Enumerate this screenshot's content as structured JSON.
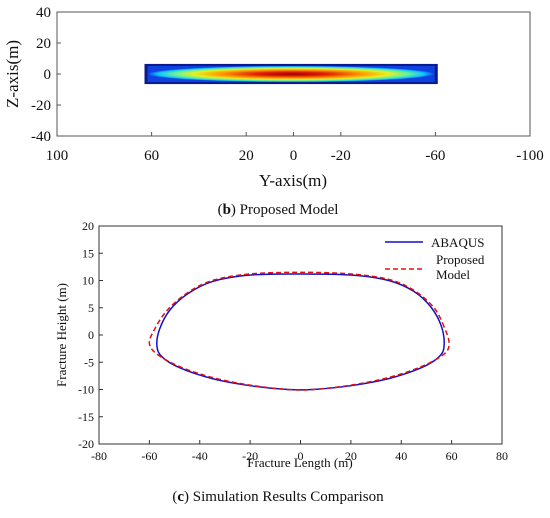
{
  "chart_data": [
    {
      "type": "heatmap",
      "caption_letter": "b",
      "caption_text": "Proposed Model",
      "xlabel": "Y-axis(m)",
      "ylabel": "Z-axis(m)",
      "xlim": [
        100,
        -100
      ],
      "ylim": [
        -40,
        40
      ],
      "xticks": [
        "100",
        "60",
        "20",
        "0",
        "-20",
        "-60",
        "-100"
      ],
      "xtick_values": [
        100,
        60,
        20,
        0,
        -20,
        -60,
        -100
      ],
      "yticks": [
        "40",
        "20",
        "0",
        "-20",
        "-40"
      ],
      "ytick_values": [
        40,
        20,
        0,
        -20,
        -40
      ],
      "fracture_extent": {
        "y_min": -61,
        "y_max": 63,
        "z_min": -6.5,
        "z_max": 6.5
      },
      "colors": [
        "#0a1a8a",
        "#00c8ff",
        "#7fff7f",
        "#ffe000",
        "#ff4000",
        "#b00000"
      ]
    },
    {
      "type": "line",
      "caption_letter": "c",
      "caption_text": "Simulation Results Comparison",
      "xlabel": "Fracture Length (m)",
      "ylabel": "Fracture Height (m)",
      "xlim": [
        -80,
        80
      ],
      "ylim": [
        -20,
        20
      ],
      "xticks": [
        "-80",
        "-60",
        "-40",
        "-20",
        "0",
        "20",
        "40",
        "60",
        "80"
      ],
      "xtick_values": [
        -80,
        -60,
        -40,
        -20,
        0,
        20,
        40,
        60,
        80
      ],
      "yticks": [
        "20",
        "15",
        "10",
        "5",
        "0",
        "-5",
        "-10",
        "-15",
        "-20"
      ],
      "ytick_values": [
        20,
        15,
        10,
        5,
        0,
        -5,
        -10,
        -15,
        -20
      ],
      "legend_position": "top-right",
      "series": [
        {
          "name": "ABAQUS",
          "color": "#1010cc",
          "dash": "solid",
          "x": [
            56,
            52,
            45,
            35,
            20,
            0,
            -20,
            -35,
            -45,
            -52,
            -56,
            -57,
            -55,
            -48,
            -35,
            -20,
            -5,
            5,
            20,
            35,
            48,
            55,
            57,
            56
          ],
          "y": [
            1.5,
            5,
            8,
            10,
            11,
            11.2,
            11,
            9.8,
            7.5,
            4.5,
            1,
            -2,
            -4,
            -6,
            -8,
            -9.3,
            -10,
            -10,
            -9.3,
            -8,
            -6,
            -4,
            -2,
            1.5
          ]
        },
        {
          "name": "Proposed Model",
          "color": "#e01010",
          "dash": "dashed",
          "x": [
            57,
            53,
            45,
            35,
            20,
            0,
            -20,
            -35,
            -45,
            -53,
            -58,
            -60,
            -57,
            -48,
            -35,
            -20,
            -5,
            5,
            20,
            35,
            48,
            57,
            59,
            57
          ],
          "y": [
            1.5,
            5,
            8.2,
            10.2,
            11.2,
            11.5,
            11.2,
            10,
            7.7,
            4.5,
            1,
            -1.5,
            -3.5,
            -5.8,
            -7.8,
            -9.2,
            -10,
            -10,
            -9.2,
            -7.8,
            -5.8,
            -3.5,
            -1.5,
            1.5
          ]
        }
      ]
    }
  ]
}
